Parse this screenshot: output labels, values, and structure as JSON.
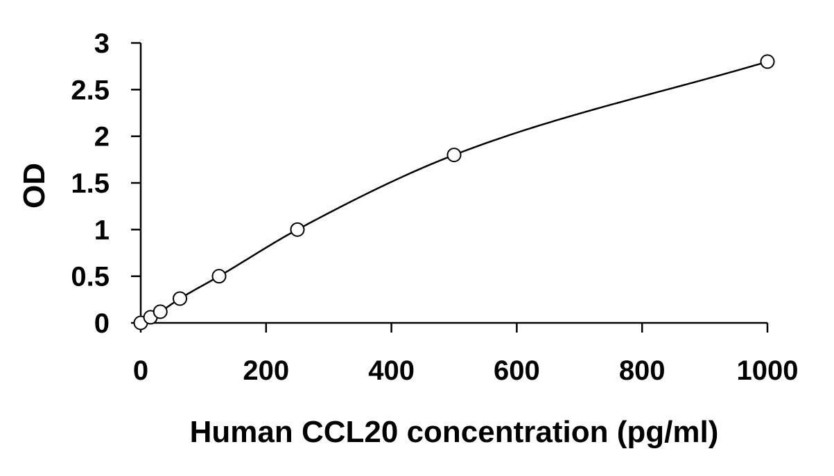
{
  "chart_data": {
    "type": "scatter",
    "title": "",
    "xlabel": "Human CCL20 concentration (pg/ml)",
    "ylabel": "OD",
    "xlim": [
      0,
      1000
    ],
    "ylim": [
      0,
      3
    ],
    "xticks": [
      "0",
      "200",
      "400",
      "600",
      "800",
      "1000"
    ],
    "yticks": [
      "0",
      "0.5",
      "1",
      "1.5",
      "2",
      "2.5",
      "3"
    ],
    "grid": false,
    "legend": "none",
    "series": [
      {
        "points": [
          {
            "x": 0,
            "y": 0.0
          },
          {
            "x": 15.6,
            "y": 0.06
          },
          {
            "x": 31.25,
            "y": 0.12
          },
          {
            "x": 62.5,
            "y": 0.26
          },
          {
            "x": 125,
            "y": 0.5
          },
          {
            "x": 250,
            "y": 1.0
          },
          {
            "x": 500,
            "y": 1.8
          },
          {
            "x": 1000,
            "y": 2.8
          }
        ],
        "marker": "open-circle",
        "color": "#000000"
      }
    ],
    "fit_curve": {
      "style": "smooth",
      "color": "#000000"
    }
  }
}
